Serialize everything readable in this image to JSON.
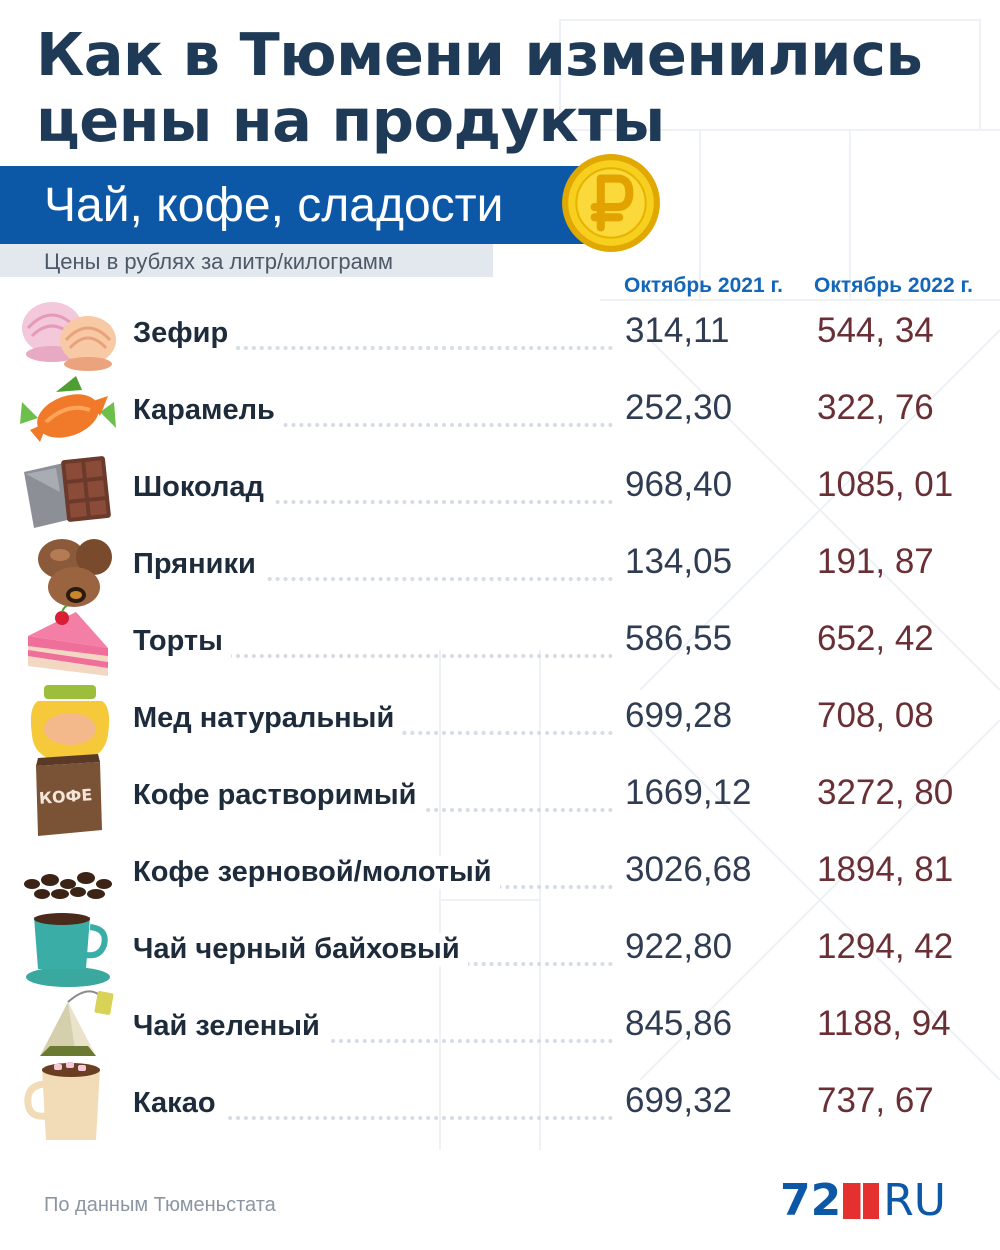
{
  "title": {
    "line1": "Как в Тюмени изменились",
    "line2": "цены на продукты"
  },
  "banner": {
    "text": "Чай, кофе, сладости"
  },
  "subtitle": "Цены в рублях за литр/килограмм",
  "columns": {
    "col1": "Октябрь 2021 г.",
    "col2": "Октябрь 2022 г."
  },
  "rows": [
    {
      "name": "Зефир",
      "v2021": "314,11",
      "v2022": "544, 34",
      "icon": "marshmallow-icon"
    },
    {
      "name": "Карамель",
      "v2021": "252,30",
      "v2022": "322, 76",
      "icon": "candy-icon"
    },
    {
      "name": "Шоколад",
      "v2021": "968,40",
      "v2022": "1085, 01",
      "icon": "chocolate-icon"
    },
    {
      "name": "Пряники",
      "v2021": "134,05",
      "v2022": "191, 87",
      "icon": "gingerbread-icon"
    },
    {
      "name": "Торты",
      "v2021": "586,55",
      "v2022": "652, 42",
      "icon": "cake-icon"
    },
    {
      "name": "Мед натуральный",
      "v2021": "699,28",
      "v2022": "708, 08",
      "icon": "honey-jar-icon"
    },
    {
      "name": "Кофе растворимый",
      "v2021": "1669,12",
      "v2022": "3272, 80",
      "icon": "coffee-bag-icon"
    },
    {
      "name": "Кофе зерновой/молотый",
      "v2021": "3026,68",
      "v2022": "1894, 81",
      "icon": "coffee-beans-icon"
    },
    {
      "name": "Чай черный байховый",
      "v2021": "922,80",
      "v2022": "1294, 42",
      "icon": "tea-cup-icon"
    },
    {
      "name": "Чай зеленый",
      "v2021": "845,86",
      "v2022": "1188, 94",
      "icon": "tea-bag-icon"
    },
    {
      "name": "Какао",
      "v2021": "699,32",
      "v2022": "737, 67",
      "icon": "cocoa-mug-icon"
    }
  ],
  "source": "По данным Тюменьстата",
  "logo": {
    "number": "72",
    "suffix": "RU"
  },
  "colors": {
    "title": "#1e3a57",
    "banner": "#0d58a6",
    "column_header": "#1366b8",
    "value_2022": "#6a2f35",
    "logo_square": "#e53030"
  }
}
